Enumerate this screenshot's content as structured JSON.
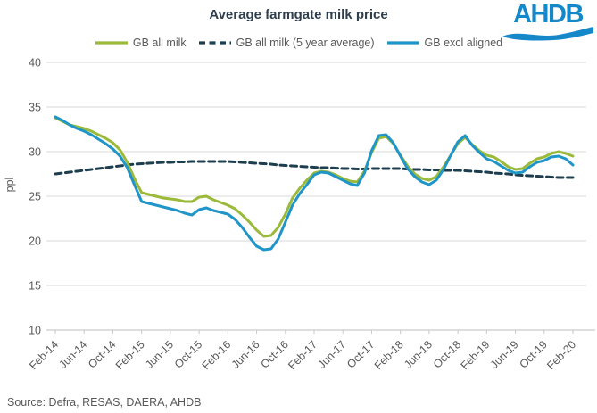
{
  "title": "Average farmgate milk price",
  "logo": {
    "text": "AHDB",
    "color": "#1588ca"
  },
  "source": "Source: Defra, RESAS, DAERA, AHDB",
  "legend": [
    {
      "label": "GB all milk",
      "color": "#9bba3a",
      "dash": null
    },
    {
      "label": "GB all milk (5 year average)",
      "color": "#1d3e4f",
      "dash": "7 4.5"
    },
    {
      "label": "GB excl aligned",
      "color": "#2095c8",
      "dash": null
    }
  ],
  "chart_data": {
    "type": "line",
    "title": "Average farmgate milk price",
    "xlabel": "",
    "ylabel": "ppl",
    "ylim": [
      10,
      40
    ],
    "ytick_step": 5,
    "grid": "horizontal",
    "legend_position": "top",
    "x_frequency": "monthly",
    "x_start": "Feb-14",
    "x_end": "Feb-20",
    "x_tick_labels": [
      "Feb-14",
      "Jun-14",
      "Oct-14",
      "Feb-15",
      "Jun-15",
      "Oct-15",
      "Feb-16",
      "Jun-16",
      "Oct-16",
      "Feb-17",
      "Jun-17",
      "Oct-17",
      "Feb-18",
      "Jun-18",
      "Oct-18",
      "Feb-19",
      "Jun-19",
      "Oct-19",
      "Feb-20"
    ],
    "unit": "ppl (pence per litre)",
    "series": [
      {
        "name": "GB all milk",
        "color": "#9bba3a",
        "dash": null,
        "values": [
          33.8,
          33.4,
          33.0,
          32.8,
          32.6,
          32.3,
          31.9,
          31.5,
          31.0,
          30.2,
          28.8,
          27.0,
          25.4,
          25.2,
          25.0,
          24.8,
          24.7,
          24.6,
          24.4,
          24.4,
          24.9,
          25.0,
          24.6,
          24.3,
          24.0,
          23.6,
          22.9,
          22.1,
          21.2,
          20.5,
          20.6,
          21.5,
          23.0,
          24.8,
          25.9,
          26.8,
          27.6,
          27.8,
          27.7,
          27.4,
          27.0,
          26.7,
          26.6,
          27.8,
          29.9,
          31.5,
          31.7,
          30.9,
          29.6,
          28.4,
          27.5,
          27.0,
          26.8,
          27.2,
          28.3,
          29.6,
          30.9,
          31.6,
          30.8,
          30.1,
          29.6,
          29.4,
          28.9,
          28.3,
          28.0,
          28.1,
          28.7,
          29.2,
          29.4,
          29.8,
          30.0,
          29.8,
          29.5
        ]
      },
      {
        "name": "GB all milk (5 year average)",
        "color": "#1d3e4f",
        "dash": "7 4.5",
        "values": [
          27.5,
          27.6,
          27.7,
          27.8,
          27.9,
          28.0,
          28.1,
          28.2,
          28.3,
          28.4,
          28.5,
          28.6,
          28.65,
          28.7,
          28.75,
          28.8,
          28.8,
          28.85,
          28.85,
          28.9,
          28.9,
          28.9,
          28.9,
          28.9,
          28.9,
          28.85,
          28.8,
          28.75,
          28.7,
          28.65,
          28.6,
          28.5,
          28.45,
          28.4,
          28.35,
          28.3,
          28.25,
          28.2,
          28.2,
          28.15,
          28.1,
          28.1,
          28.05,
          28.05,
          28.1,
          28.1,
          28.1,
          28.1,
          28.1,
          28.05,
          28.0,
          28.0,
          27.95,
          27.95,
          27.9,
          27.9,
          27.9,
          27.85,
          27.8,
          27.75,
          27.7,
          27.6,
          27.55,
          27.5,
          27.4,
          27.35,
          27.3,
          27.25,
          27.2,
          27.15,
          27.1,
          27.1,
          27.1
        ]
      },
      {
        "name": "GB excl aligned",
        "color": "#2095c8",
        "dash": null,
        "values": [
          33.9,
          33.5,
          33.0,
          32.6,
          32.3,
          31.9,
          31.4,
          30.9,
          30.3,
          29.5,
          28.2,
          26.3,
          24.4,
          24.2,
          24.0,
          23.8,
          23.6,
          23.4,
          23.1,
          22.9,
          23.5,
          23.7,
          23.4,
          23.2,
          23.0,
          22.4,
          21.5,
          20.4,
          19.4,
          19.0,
          19.1,
          20.2,
          22.1,
          24.0,
          25.3,
          26.3,
          27.4,
          27.7,
          27.6,
          27.2,
          26.8,
          26.4,
          26.2,
          27.6,
          30.1,
          31.8,
          31.9,
          31.0,
          29.5,
          28.1,
          27.2,
          26.6,
          26.3,
          26.8,
          28.0,
          29.6,
          31.1,
          31.8,
          30.7,
          29.9,
          29.2,
          28.9,
          28.4,
          27.9,
          27.6,
          27.7,
          28.3,
          28.8,
          29.0,
          29.4,
          29.5,
          29.2,
          28.5
        ]
      }
    ]
  }
}
